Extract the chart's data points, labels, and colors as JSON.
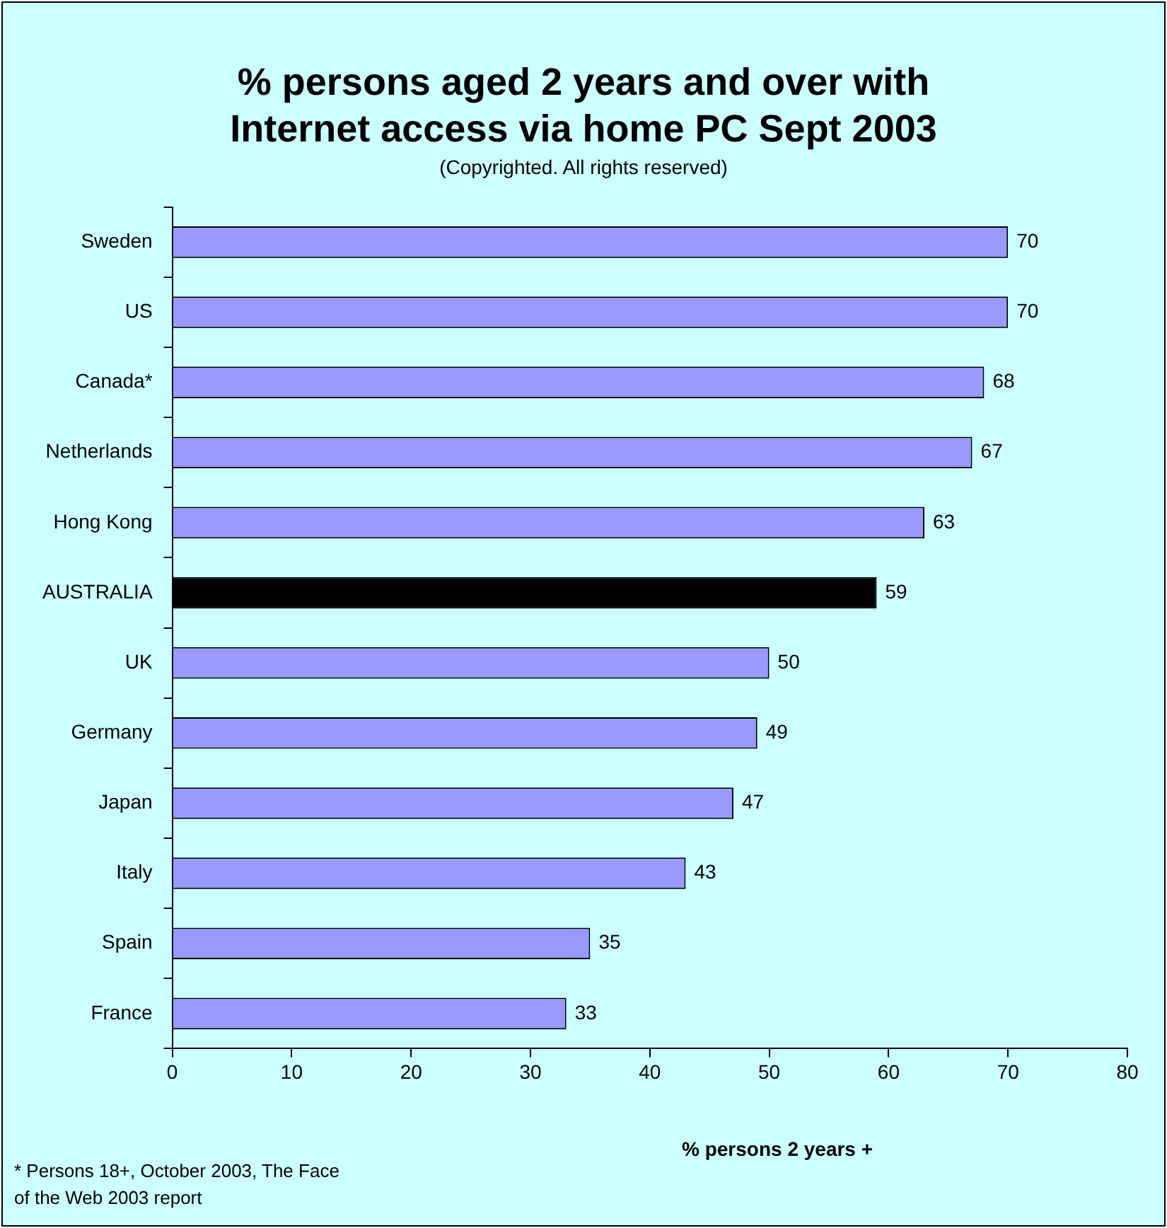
{
  "chart_data": {
    "type": "bar",
    "orientation": "horizontal",
    "title": "% persons aged 2 years and over with Internet access via home PC  Sept 2003",
    "subtitle": "(Copyrighted. All rights reserved)",
    "xlabel": "% persons 2 years +",
    "categories": [
      "Sweden",
      "US",
      "Canada*",
      "Netherlands",
      "Hong Kong",
      "AUSTRALIA",
      "UK",
      "Germany",
      "Japan",
      "Italy",
      "Spain",
      "France"
    ],
    "values": [
      70,
      70,
      68,
      67,
      63,
      59,
      50,
      49,
      47,
      43,
      35,
      33
    ],
    "colors": [
      "#9999ff",
      "#9999ff",
      "#9999ff",
      "#9999ff",
      "#9999ff",
      "#000000",
      "#9999ff",
      "#9999ff",
      "#9999ff",
      "#9999ff",
      "#9999ff",
      "#9999ff"
    ],
    "xlim": [
      0,
      80
    ],
    "xticks": [
      0,
      10,
      20,
      30,
      40,
      50,
      60,
      70,
      80
    ],
    "grid": false,
    "legend": false,
    "data_labels": true,
    "annotations": [
      "* Persons 18+, October 2003, The Face of the Web 2003 report"
    ]
  }
}
